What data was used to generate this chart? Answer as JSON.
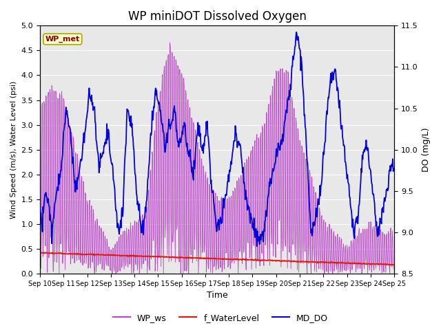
{
  "title": "WP miniDOT Dissolved Oxygen",
  "xlabel": "Time",
  "ylabel_left": "Wind Speed (m/s), Water Level (psi)",
  "ylabel_right": "DO (mg/L)",
  "ylim_left": [
    0.0,
    5.0
  ],
  "ylim_right": [
    8.5,
    11.5
  ],
  "x_tick_labels": [
    "Sep 10",
    "Sep 11",
    "Sep 12",
    "Sep 13",
    "Sep 14",
    "Sep 15",
    "Sep 16",
    "Sep 17",
    "Sep 18",
    "Sep 19",
    "Sep 20",
    "Sep 21",
    "Sep 22",
    "Sep 23",
    "Sep 24",
    "Sep 25"
  ],
  "annotation_text": "WP_met",
  "annotation_color": "#8B0000",
  "annotation_bg": "#FFFFCC",
  "legend_labels": [
    "WP_ws",
    "f_WaterLevel",
    "MD_DO"
  ],
  "ws_color": "#BB44CC",
  "wl_color": "#EE1100",
  "do_color": "#0000DD",
  "background_color": "#E8E8E8",
  "grid_color": "#FFFFFF",
  "title_fontsize": 12
}
